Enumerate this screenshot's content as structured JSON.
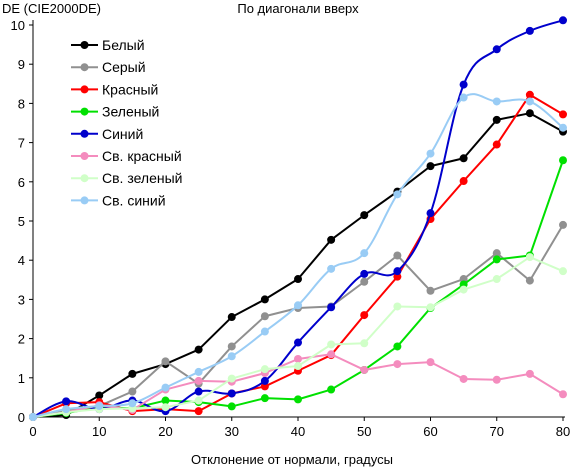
{
  "chart_data": {
    "type": "line",
    "title": "По диагонали вверх",
    "ylabel": "DE (CIE2000DE)",
    "xlabel": "Отклонение от нормали, градусы",
    "xlim": [
      0,
      80
    ],
    "ylim": [
      0,
      10
    ],
    "x_ticks": [
      0,
      10,
      20,
      30,
      40,
      50,
      60,
      70,
      80
    ],
    "y_ticks": [
      0,
      1,
      2,
      3,
      4,
      5,
      6,
      7,
      8,
      9,
      10
    ],
    "grid": false,
    "legend_position": "top-left",
    "x": [
      0,
      5,
      10,
      15,
      20,
      25,
      30,
      35,
      40,
      45,
      50,
      55,
      60,
      65,
      70,
      75,
      80
    ],
    "series": [
      {
        "name": "Белый",
        "color": "#000000",
        "smooth": false,
        "values": [
          0,
          0.05,
          0.55,
          1.1,
          1.35,
          1.72,
          2.55,
          3.0,
          3.52,
          4.52,
          5.15,
          5.75,
          6.4,
          6.6,
          7.58,
          7.75,
          7.28
        ]
      },
      {
        "name": "Серый",
        "color": "#909090",
        "smooth": false,
        "values": [
          0,
          0.15,
          0.28,
          0.65,
          1.42,
          0.85,
          1.8,
          2.57,
          2.78,
          2.82,
          3.45,
          4.12,
          3.22,
          3.52,
          4.18,
          3.48,
          4.9
        ]
      },
      {
        "name": "Красный",
        "color": "#ff0000",
        "smooth": false,
        "values": [
          0,
          0.35,
          0.38,
          0.15,
          0.2,
          0.15,
          0.6,
          0.78,
          1.18,
          1.58,
          2.6,
          3.58,
          5.05,
          6.02,
          6.95,
          8.22,
          7.72
        ]
      },
      {
        "name": "Зеленый",
        "color": "#00e000",
        "smooth": false,
        "values": [
          0,
          0.1,
          0.25,
          0.22,
          0.42,
          0.38,
          0.27,
          0.48,
          0.45,
          0.7,
          1.2,
          1.8,
          2.78,
          3.38,
          4.02,
          4.12,
          6.55
        ]
      },
      {
        "name": "Синий",
        "color": "#0000cc",
        "smooth": true,
        "values": [
          0,
          0.4,
          0.2,
          0.42,
          0.15,
          0.65,
          0.6,
          0.92,
          1.9,
          2.8,
          3.65,
          3.72,
          5.2,
          8.48,
          9.38,
          9.85,
          10.12
        ]
      },
      {
        "name": "Св. красный",
        "color": "#f48cbe",
        "smooth": false,
        "values": [
          0,
          0.12,
          0.3,
          0.18,
          0.7,
          0.92,
          0.9,
          1.12,
          1.48,
          1.6,
          1.2,
          1.35,
          1.4,
          0.97,
          0.95,
          1.1,
          0.58
        ]
      },
      {
        "name": "Св. зеленый",
        "color": "#d0ffc8",
        "smooth": false,
        "values": [
          0,
          0.12,
          0.2,
          0.22,
          0.25,
          0.42,
          0.98,
          1.22,
          1.3,
          1.85,
          1.88,
          2.82,
          2.8,
          3.25,
          3.52,
          4.08,
          3.72
        ]
      },
      {
        "name": "Св. синий",
        "color": "#99ccf5",
        "smooth": true,
        "values": [
          0,
          0.2,
          0.28,
          0.35,
          0.75,
          1.15,
          1.55,
          2.18,
          2.85,
          3.78,
          4.18,
          5.68,
          6.72,
          8.15,
          8.05,
          8.05,
          7.38
        ]
      }
    ]
  }
}
